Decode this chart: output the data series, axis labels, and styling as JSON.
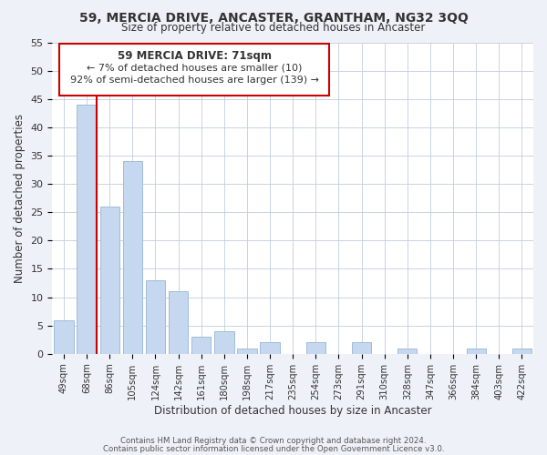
{
  "title1": "59, MERCIA DRIVE, ANCASTER, GRANTHAM, NG32 3QQ",
  "title2": "Size of property relative to detached houses in Ancaster",
  "xlabel": "Distribution of detached houses by size in Ancaster",
  "ylabel": "Number of detached properties",
  "bar_labels": [
    "49sqm",
    "68sqm",
    "86sqm",
    "105sqm",
    "124sqm",
    "142sqm",
    "161sqm",
    "180sqm",
    "198sqm",
    "217sqm",
    "235sqm",
    "254sqm",
    "273sqm",
    "291sqm",
    "310sqm",
    "328sqm",
    "347sqm",
    "366sqm",
    "384sqm",
    "403sqm",
    "422sqm"
  ],
  "bar_values": [
    6,
    44,
    26,
    34,
    13,
    11,
    3,
    4,
    1,
    2,
    0,
    2,
    0,
    2,
    0,
    1,
    0,
    0,
    1,
    0,
    1
  ],
  "bar_color": "#c5d8f0",
  "bar_edge_color": "#a0bcd8",
  "vline_color": "#cc0000",
  "ylim": [
    0,
    55
  ],
  "yticks": [
    0,
    5,
    10,
    15,
    20,
    25,
    30,
    35,
    40,
    45,
    50,
    55
  ],
  "annotation_title": "59 MERCIA DRIVE: 71sqm",
  "annotation_line1": "← 7% of detached houses are smaller (10)",
  "annotation_line2": "92% of semi-detached houses are larger (139) →",
  "footer1": "Contains HM Land Registry data © Crown copyright and database right 2024.",
  "footer2": "Contains public sector information licensed under the Open Government Licence v3.0.",
  "background_color": "#eef2f8",
  "plot_bg_color": "#ffffff"
}
